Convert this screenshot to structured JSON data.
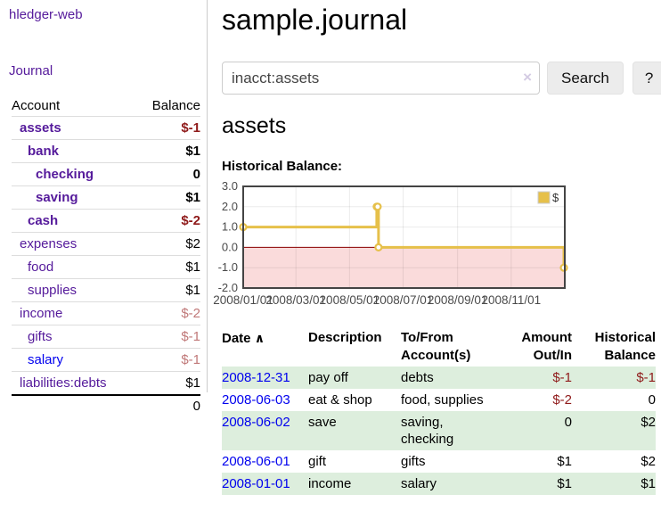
{
  "colors": {
    "purple": "#551a9b",
    "blue": "#0000ee",
    "neg-strong": "#8f1a1a",
    "neg-muted": "#c07878",
    "stripe": "#ddeedd",
    "gold": "#e6c04a",
    "pink": "#fadbdb",
    "zero": "#8b0000"
  },
  "sidebar": {
    "brand": "hledger-web",
    "journal_label": "Journal",
    "accounts_table": {
      "header_account": "Account",
      "header_balance": "Balance",
      "rows": [
        {
          "name": "assets",
          "indent": 0,
          "bold": true,
          "balance": "$-1"
        },
        {
          "name": "bank",
          "indent": 1,
          "bold": true,
          "balance": "$1"
        },
        {
          "name": "checking",
          "indent": 2,
          "bold": true,
          "balance": "0"
        },
        {
          "name": "saving",
          "indent": 2,
          "bold": true,
          "balance": "$1"
        },
        {
          "name": "cash",
          "indent": 1,
          "bold": true,
          "balance": "$-2"
        },
        {
          "name": "expenses",
          "indent": 0,
          "bold": false,
          "balance": "$2"
        },
        {
          "name": "food",
          "indent": 1,
          "bold": false,
          "balance": "$1"
        },
        {
          "name": "supplies",
          "indent": 1,
          "bold": false,
          "balance": "$1"
        },
        {
          "name": "income",
          "indent": 0,
          "bold": false,
          "balance": "$-2"
        },
        {
          "name": "gifts",
          "indent": 1,
          "bold": false,
          "balance": "$-1"
        },
        {
          "name": "salary",
          "indent": 1,
          "bold": false,
          "balance": "$-1",
          "link": "blue"
        },
        {
          "name": "liabilities:debts",
          "indent": 0,
          "bold": false,
          "balance": "$1"
        }
      ],
      "total": "0"
    }
  },
  "header": {
    "title": "sample.journal"
  },
  "search": {
    "value": "inacct:assets",
    "clear_icon": "×",
    "button_label": "Search",
    "help_label": "?"
  },
  "account_page": {
    "heading": "assets",
    "chart_label": "Historical Balance:"
  },
  "chart_data": {
    "type": "line",
    "style": "steps",
    "title": "Historical Balance:",
    "series": [
      {
        "name": "$",
        "color": "#e6c04a",
        "points": [
          [
            "2008-01-01",
            1
          ],
          [
            "2008-06-01",
            2
          ],
          [
            "2008-06-02",
            2
          ],
          [
            "2008-06-03",
            0
          ],
          [
            "2008-12-31",
            -1
          ]
        ]
      }
    ],
    "xrange": [
      "2008-01-01",
      "2009-01-01"
    ],
    "xticks": [
      {
        "date": "2008-01-01",
        "label": "2008/01/01"
      },
      {
        "date": "2008-03-01",
        "label": "2008/03/01"
      },
      {
        "date": "2008-05-01",
        "label": "2008/05/01"
      },
      {
        "date": "2008-07-01",
        "label": "2008/07/01"
      },
      {
        "date": "2008-09-01",
        "label": "2008/09/01"
      },
      {
        "date": "2008-11-01",
        "label": "2008/11/01"
      }
    ],
    "ylim": [
      -2,
      3
    ],
    "yticks": [
      {
        "v": 3,
        "label": "3.0"
      },
      {
        "v": 2,
        "label": "2.0"
      },
      {
        "v": 1,
        "label": "1.0"
      },
      {
        "v": 0,
        "label": "0.0"
      },
      {
        "v": -1,
        "label": "-1.0"
      },
      {
        "v": -2,
        "label": "-2.0"
      }
    ],
    "grid": true,
    "legend": {
      "position": "top-right",
      "entries": [
        {
          "label": "$",
          "color": "#e6c04a"
        }
      ]
    },
    "markings": {
      "negative_region_fill": "#fadbdb",
      "zero_line_color": "#8b0000"
    }
  },
  "register_table": {
    "headers": {
      "date": "Date",
      "description": "Description",
      "accounts": "To/From Account(s)",
      "amount": "Amount Out/In",
      "balance": "Historical Balance"
    },
    "sort_icon": "∧",
    "rows": [
      {
        "date": "2008-12-31",
        "description": "pay off",
        "accounts": "debts",
        "amount": "$-1",
        "balance": "$-1"
      },
      {
        "date": "2008-06-03",
        "description": "eat & shop",
        "accounts": "food, supplies",
        "amount": "$-2",
        "balance": "0"
      },
      {
        "date": "2008-06-02",
        "description": "save",
        "accounts": "saving, checking",
        "amount": "0",
        "balance": "$2"
      },
      {
        "date": "2008-06-01",
        "description": "gift",
        "accounts": "gifts",
        "amount": "$1",
        "balance": "$2"
      },
      {
        "date": "2008-01-01",
        "description": "income",
        "accounts": "salary",
        "amount": "$1",
        "balance": "$1"
      }
    ]
  }
}
